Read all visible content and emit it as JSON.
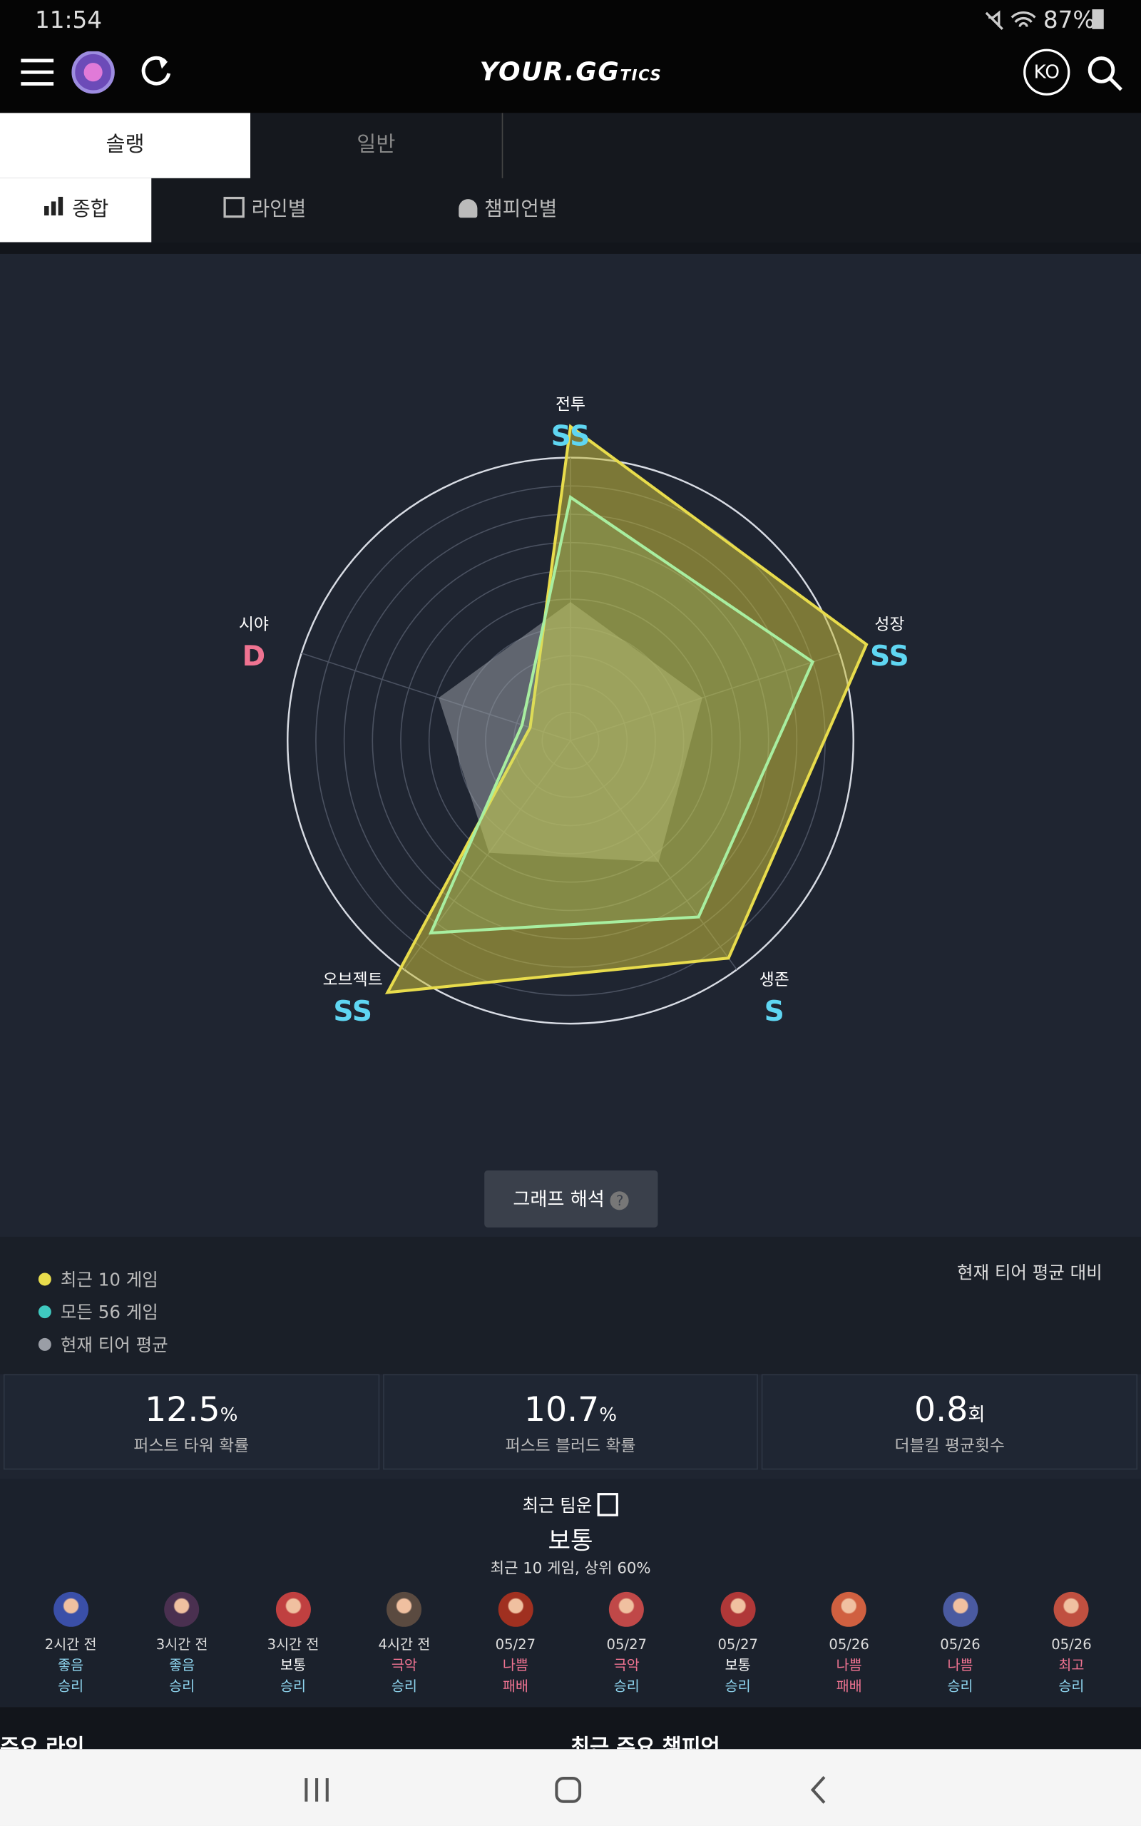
{
  "status": {
    "time": "11:54",
    "battery": "87%"
  },
  "header": {
    "logo": "YOUR.GG",
    "logo_suffix": "TICS",
    "lang": "KO"
  },
  "tabs": [
    "솔랭",
    "일반"
  ],
  "subtabs": [
    "종합",
    "라인별",
    "챔피언별"
  ],
  "chart_data": {
    "type": "radar",
    "axes": [
      {
        "label": "전투",
        "grade": "SS",
        "grade_color": "#5fd6f2"
      },
      {
        "label": "성장",
        "grade": "SS",
        "grade_color": "#5fd6f2"
      },
      {
        "label": "생존",
        "grade": "S",
        "grade_color": "#5fd6f2"
      },
      {
        "label": "오브젝트",
        "grade": "SS",
        "grade_color": "#5fd6f2"
      },
      {
        "label": "시야",
        "grade": "D",
        "grade_color": "#ef7391"
      }
    ],
    "rlim": [
      0,
      100
    ],
    "rticks": [
      10,
      20,
      30,
      40,
      50,
      60,
      70,
      80,
      90,
      100
    ],
    "series": [
      {
        "name": "현재 티어 평균",
        "color": "#9a9ea6",
        "values": [
          49,
          49,
          53,
          49,
          49
        ]
      },
      {
        "name": "최근 10 게임",
        "color": "#e8dc4c",
        "values": [
          111,
          110,
          95,
          110,
          15
        ]
      },
      {
        "name": "모든 56 게임",
        "color": "#3fc9c0",
        "values": [
          86,
          90,
          77,
          84,
          18
        ]
      }
    ],
    "button": "그래프 해석",
    "compare_note": "현재 티어 평균 대비"
  },
  "stats": [
    {
      "value": "12.5",
      "unit": "%",
      "label": "퍼스트 타워 확률"
    },
    {
      "value": "10.7",
      "unit": "%",
      "label": "퍼스트 블러드 확률"
    },
    {
      "value": "0.8",
      "unit": "회",
      "label": "더블킬 평균횟수"
    }
  ],
  "team_luck": {
    "title": "최근 팀운",
    "grade": "보통",
    "note": "최근 10 게임, 상위 60%",
    "games": [
      {
        "time": "2시간 전",
        "grade": "좋음",
        "grade_color": "#8fd6f0",
        "result": "승리",
        "result_color": "#8fd6f0"
      },
      {
        "time": "3시간 전",
        "grade": "좋음",
        "grade_color": "#8fd6f0",
        "result": "승리",
        "result_color": "#8fd6f0"
      },
      {
        "time": "3시간 전",
        "grade": "보통",
        "grade_color": "#ffffff",
        "result": "승리",
        "result_color": "#8fd6f0"
      },
      {
        "time": "4시간 전",
        "grade": "극악",
        "grade_color": "#ef7391",
        "result": "승리",
        "result_color": "#8fd6f0"
      },
      {
        "time": "05/27",
        "grade": "나쁨",
        "grade_color": "#ef7391",
        "result": "패배",
        "result_color": "#ef7391"
      },
      {
        "time": "05/27",
        "grade": "극악",
        "grade_color": "#ef7391",
        "result": "승리",
        "result_color": "#8fd6f0"
      },
      {
        "time": "05/27",
        "grade": "보통",
        "grade_color": "#ffffff",
        "result": "승리",
        "result_color": "#8fd6f0"
      },
      {
        "time": "05/26",
        "grade": "나쁨",
        "grade_color": "#ef7391",
        "result": "패배",
        "result_color": "#ef7391"
      },
      {
        "time": "05/26",
        "grade": "나쁨",
        "grade_color": "#ef7391",
        "result": "승리",
        "result_color": "#8fd6f0"
      },
      {
        "time": "05/26",
        "grade": "최고",
        "grade_color": "#ef7391",
        "result": "승리",
        "result_color": "#8fd6f0"
      }
    ]
  },
  "sections": [
    "주요 라인",
    "최근 주요 챔피언"
  ]
}
